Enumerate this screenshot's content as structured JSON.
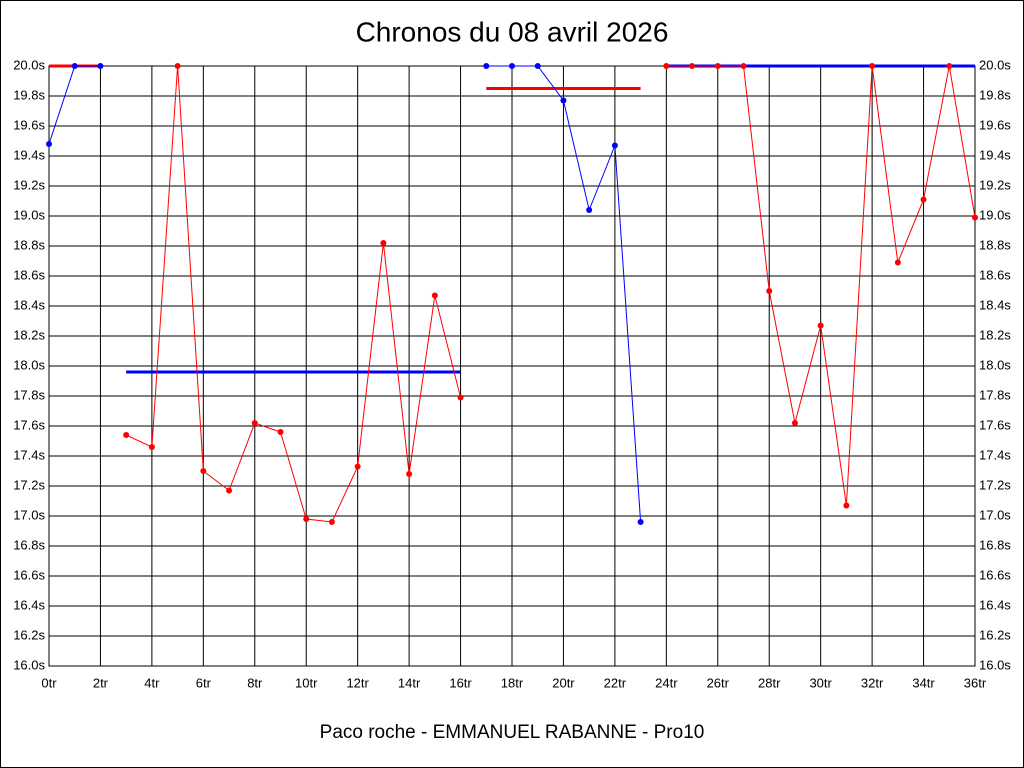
{
  "chart_data": {
    "type": "line",
    "title": "Chronos du 08 avril 2026",
    "xlabel": "Paco roche - EMMANUEL RABANNE - Pro10",
    "x": [
      0,
      1,
      2,
      3,
      4,
      5,
      6,
      7,
      8,
      9,
      10,
      11,
      12,
      13,
      14,
      15,
      16,
      17,
      18,
      19,
      20,
      21,
      22,
      23,
      24,
      25,
      26,
      27,
      28,
      29,
      30,
      31,
      32,
      33,
      34,
      35,
      36
    ],
    "series": [
      {
        "color": "#0000ff",
        "values": [
          19.48,
          20.0,
          20.0,
          null,
          null,
          null,
          null,
          null,
          null,
          null,
          null,
          null,
          null,
          null,
          null,
          null,
          null,
          20.0,
          20.0,
          20.0,
          19.77,
          19.04,
          19.47,
          16.96,
          null,
          null,
          null,
          null,
          null,
          null,
          null,
          null,
          null,
          null,
          null,
          null,
          null
        ]
      },
      {
        "color": "#ff0000",
        "values": [
          null,
          null,
          null,
          17.54,
          17.46,
          20.0,
          17.3,
          17.17,
          17.62,
          17.56,
          16.98,
          16.96,
          17.33,
          18.82,
          17.28,
          18.47,
          17.79,
          null,
          null,
          null,
          null,
          null,
          null,
          null,
          20.0,
          20.0,
          20.0,
          20.0,
          18.5,
          17.62,
          18.27,
          17.07,
          20.0,
          18.69,
          19.11,
          20.0,
          18.99
        ]
      }
    ],
    "hlines": [
      {
        "color": "#ff0000",
        "from": 0,
        "to": 2,
        "value": 20.0
      },
      {
        "color": "#0000ff",
        "from": 3,
        "to": 16,
        "value": 17.96
      },
      {
        "color": "#ff0000",
        "from": 17,
        "to": 23,
        "value": 19.85
      },
      {
        "color": "#0000ff",
        "from": 24,
        "to": 36,
        "value": 20.0
      }
    ],
    "xlim": [
      0,
      36
    ],
    "xticks": [
      {
        "value": 0,
        "label": "0tr"
      },
      {
        "value": 2,
        "label": "2tr"
      },
      {
        "value": 4,
        "label": "4tr"
      },
      {
        "value": 6,
        "label": "6tr"
      },
      {
        "value": 8,
        "label": "8tr"
      },
      {
        "value": 10,
        "label": "10tr"
      },
      {
        "value": 12,
        "label": "12tr"
      },
      {
        "value": 14,
        "label": "14tr"
      },
      {
        "value": 16,
        "label": "16tr"
      },
      {
        "value": 18,
        "label": "18tr"
      },
      {
        "value": 20,
        "label": "20tr"
      },
      {
        "value": 22,
        "label": "22tr"
      },
      {
        "value": 24,
        "label": "24tr"
      },
      {
        "value": 26,
        "label": "26tr"
      },
      {
        "value": 28,
        "label": "28tr"
      },
      {
        "value": 30,
        "label": "30tr"
      },
      {
        "value": 32,
        "label": "32tr"
      },
      {
        "value": 34,
        "label": "34tr"
      },
      {
        "value": 36,
        "label": "36tr"
      }
    ],
    "ylim": [
      16.0,
      20.0
    ],
    "yticks": [
      {
        "value": 16.0,
        "label": "16.0s"
      },
      {
        "value": 16.2,
        "label": "16.2s"
      },
      {
        "value": 16.4,
        "label": "16.4s"
      },
      {
        "value": 16.6,
        "label": "16.6s"
      },
      {
        "value": 16.8,
        "label": "16.8s"
      },
      {
        "value": 17.0,
        "label": "17.0s"
      },
      {
        "value": 17.2,
        "label": "17.2s"
      },
      {
        "value": 17.4,
        "label": "17.4s"
      },
      {
        "value": 17.6,
        "label": "17.6s"
      },
      {
        "value": 17.8,
        "label": "17.8s"
      },
      {
        "value": 18.0,
        "label": "18.0s"
      },
      {
        "value": 18.2,
        "label": "18.2s"
      },
      {
        "value": 18.4,
        "label": "18.4s"
      },
      {
        "value": 18.6,
        "label": "18.6s"
      },
      {
        "value": 18.8,
        "label": "18.8s"
      },
      {
        "value": 19.0,
        "label": "19.0s"
      },
      {
        "value": 19.2,
        "label": "19.2s"
      },
      {
        "value": 19.4,
        "label": "19.4s"
      },
      {
        "value": 19.6,
        "label": "19.6s"
      },
      {
        "value": 19.8,
        "label": "19.8s"
      },
      {
        "value": 20.0,
        "label": "20.0s"
      }
    ],
    "grid": true
  }
}
